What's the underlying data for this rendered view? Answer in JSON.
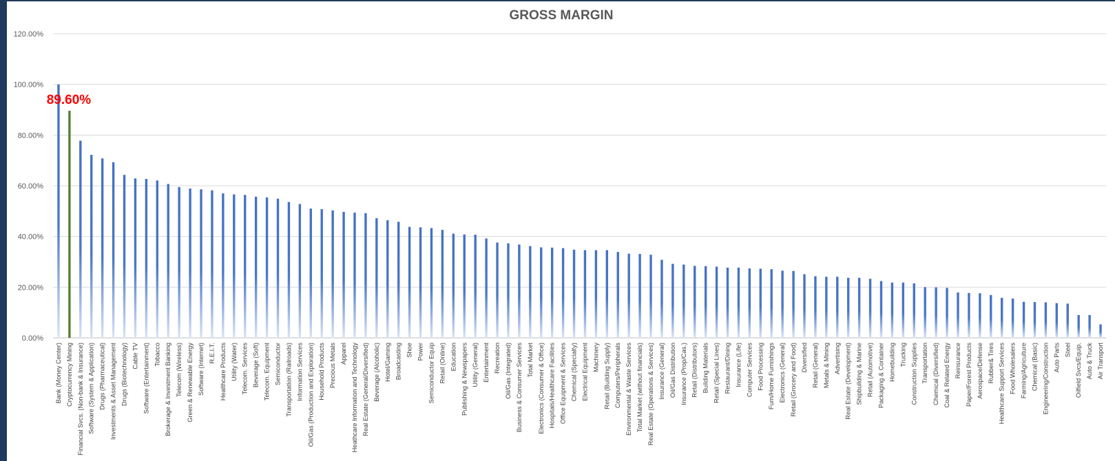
{
  "chart_data": {
    "type": "bar",
    "title": "GROSS MARGIN",
    "ylim": [
      0,
      120
    ],
    "yticks": [
      "0.00%",
      "20.00%",
      "40.00%",
      "60.00%",
      "80.00%",
      "100.00%",
      "120.00%"
    ],
    "grid": true,
    "legend": "none",
    "colors": {
      "default": "#4472c4",
      "highlight": "#548235",
      "annotation": "#ff0000"
    },
    "highlight_index": 1,
    "annotation": "89.60%",
    "categories": [
      "Bank (Money Center)",
      "Cryptocurrency Mining",
      "Financial Svcs. (Non-bank & Insurance)",
      "Software (System & Application)",
      "Drugs (Pharmaceutical)",
      "Investments & Asset Management",
      "Drugs (Biotechnology)",
      "Cable TV",
      "Software (Entertainment)",
      "Tobacco",
      "Brokerage & Investment Banking",
      "Telecom (Wireless)",
      "Green & Renewable Energy",
      "Software (Internet)",
      "R.E.I.T.",
      "Healthcare Products",
      "Utility (Water)",
      "Telecom. Services",
      "Beverage (Soft)",
      "Telecom. Equipment",
      "Semiconductor",
      "Transportation (Railroads)",
      "Information Services",
      "Oil/Gas (Production and Exploration)",
      "Household Products",
      "Precious Metals",
      "Apparel",
      "Heathcare Information and Technology",
      "Real Estate (General/Diversified)",
      "Beverage (Alcoholic)",
      "Hotel/Gaming",
      "Broadcasting",
      "Shoe",
      "Power",
      "Semiconductor Equip",
      "Retail (Online)",
      "Education",
      "Publishing & Newspapers",
      "Utility (General)",
      "Entertainment",
      "Recreation",
      "Oil/Gas (Integrated)",
      "Business & Consumer Services",
      "Total Market",
      "Electronics (Consumer & Office)",
      "Hospitals/Healthcare Facilities",
      "Office Equipment & Services",
      "Chemical (Specialty)",
      "Electrical Equipment",
      "Machinery",
      "Retail (Building Supply)",
      "Computers/Peripherals",
      "Environmental & Waste Services",
      "Total Market (without financials)",
      "Real Estate (Operations & Services)",
      "Insurance (General)",
      "Oil/Gas Distribution",
      "Insurance (Prop/Cas.)",
      "Retail (Distributors)",
      "Building Materials",
      "Retail (Special Lines)",
      "Restaurant/Dining",
      "Insurance (Life)",
      "Computer Services",
      "Food Processing",
      "Furn/Home Furnishings",
      "Electronics (General)",
      "Retail (Grocery and Food)",
      "Diversified",
      "Retail (General)",
      "Metals & Mining",
      "Advertising",
      "Real Estate (Development)",
      "Shipbuilding & Marine",
      "Retail (Automotive)",
      "Packaging & Container",
      "Homebuilding",
      "Trucking",
      "Construction Supplies",
      "Transportation",
      "Chemical (Diversified)",
      "Coal & Related Energy",
      "Reinsurance",
      "Paper/Forest Products",
      "Aerospace/Defense",
      "Rubber& Tires",
      "Healthcare Support Services",
      "Food Wholesalers",
      "Farming/Agriculture",
      "Chemical (Basic)",
      "Engineering/Construction",
      "Auto Parts",
      "Steel",
      "Oilfield Svcs/Equip.",
      "Auto & Truck",
      "Air Transport"
    ],
    "values": [
      100.0,
      89.6,
      77.8,
      72.2,
      70.8,
      69.3,
      64.3,
      62.9,
      62.7,
      62.1,
      60.7,
      59.5,
      58.9,
      58.6,
      58.2,
      57.0,
      56.6,
      56.4,
      55.7,
      55.4,
      54.9,
      53.6,
      52.8,
      51.0,
      50.8,
      50.3,
      49.7,
      49.4,
      49.2,
      47.2,
      46.4,
      45.8,
      43.8,
      43.6,
      43.3,
      42.6,
      41.1,
      40.8,
      40.7,
      39.2,
      37.6,
      37.3,
      36.8,
      36.2,
      35.7,
      35.6,
      35.4,
      34.8,
      34.6,
      34.6,
      34.6,
      33.9,
      33.2,
      33.1,
      32.8,
      30.8,
      29.2,
      28.9,
      28.4,
      28.3,
      28.1,
      27.7,
      27.7,
      27.4,
      27.3,
      27.1,
      26.5,
      26.4,
      25.1,
      24.3,
      24.1,
      24.1,
      23.7,
      23.7,
      23.3,
      22.4,
      21.8,
      21.8,
      21.5,
      20.0,
      19.9,
      19.7,
      17.9,
      17.7,
      17.6,
      16.9,
      15.8,
      15.5,
      14.2,
      14.1,
      14.0,
      13.7,
      13.5,
      9.0,
      9.0,
      5.3
    ]
  }
}
